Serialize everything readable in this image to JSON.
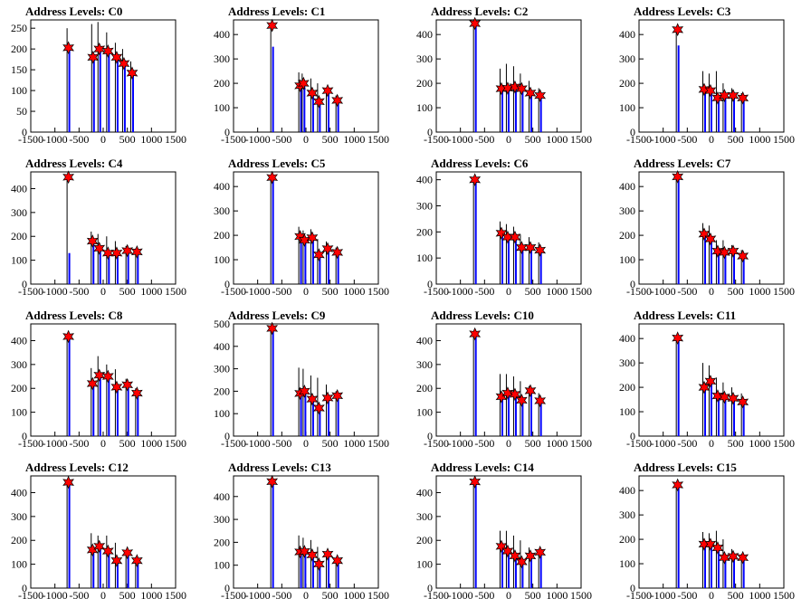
{
  "colors": {
    "black_spikes": "#000000",
    "blue_spikes": "#0000ff",
    "markers": "#ff0000",
    "marker_edge": "#000000"
  },
  "xticks": [
    -1500,
    -1000,
    -500,
    0,
    500,
    1000,
    1500
  ],
  "chart_data": [
    {
      "type": "bar",
      "title": "Address Levels: C0",
      "xlim": [
        -1500,
        1500
      ],
      "ylim": [
        0,
        270
      ],
      "yticks": [
        0,
        50,
        100,
        150,
        200,
        250
      ],
      "x": [
        -720,
        -210,
        -80,
        100,
        280,
        430,
        600,
        720
      ],
      "values": [
        203,
        180,
        200,
        195,
        180,
        165,
        142,
        null
      ],
      "spikes": [
        {
          "x": -720,
          "black": 250,
          "blue": 200
        },
        {
          "x": -210,
          "black": 260,
          "blue": 180
        },
        {
          "x": -80,
          "black": 265,
          "blue": 200
        },
        {
          "x": 100,
          "black": 240,
          "blue": 190
        },
        {
          "x": 280,
          "black": 215,
          "blue": 180
        },
        {
          "x": 430,
          "black": 200,
          "blue": 165
        },
        {
          "x": 600,
          "black": 170,
          "blue": 140
        }
      ]
    },
    {
      "type": "bar",
      "title": "Address Levels: C1",
      "xlim": [
        -1500,
        1500
      ],
      "ylim": [
        0,
        460
      ],
      "yticks": [
        0,
        100,
        200,
        300,
        400
      ],
      "x": [
        -700,
        -120,
        -50,
        130,
        270,
        450,
        650
      ],
      "values": [
        437,
        190,
        200,
        160,
        125,
        170,
        130
      ],
      "spikes": [
        {
          "x": -700,
          "black": 440,
          "blue": 350
        },
        {
          "x": -120,
          "black": 245,
          "blue": 190
        },
        {
          "x": -50,
          "black": 240,
          "blue": 200
        },
        {
          "x": 130,
          "black": 220,
          "blue": 160
        },
        {
          "x": 270,
          "black": 200,
          "blue": 120
        },
        {
          "x": 450,
          "black": 180,
          "blue": 170
        },
        {
          "x": 650,
          "black": 150,
          "blue": 130
        }
      ]
    },
    {
      "type": "bar",
      "title": "Address Levels: C2",
      "xlim": [
        -1500,
        1500
      ],
      "ylim": [
        0,
        460
      ],
      "yticks": [
        0,
        100,
        200,
        300,
        400
      ],
      "x": [
        -700,
        -150,
        -20,
        130,
        270,
        450,
        650
      ],
      "values": [
        445,
        178,
        180,
        185,
        178,
        160,
        150
      ],
      "spikes": [
        {
          "x": -700,
          "black": 450,
          "blue": 445
        },
        {
          "x": -150,
          "black": 260,
          "blue": 178
        },
        {
          "x": -20,
          "black": 280,
          "blue": 180
        },
        {
          "x": 130,
          "black": 270,
          "blue": 185
        },
        {
          "x": 270,
          "black": 240,
          "blue": 178
        },
        {
          "x": 450,
          "black": 210,
          "blue": 160
        },
        {
          "x": 650,
          "black": 180,
          "blue": 150
        }
      ]
    },
    {
      "type": "bar",
      "title": "Address Levels: C3",
      "xlim": [
        -1500,
        1500
      ],
      "ylim": [
        0,
        460
      ],
      "yticks": [
        0,
        100,
        200,
        300,
        400
      ],
      "x": [
        -700,
        -150,
        -20,
        130,
        270,
        450,
        650
      ],
      "values": [
        420,
        175,
        170,
        140,
        150,
        150,
        140
      ],
      "spikes": [
        {
          "x": -700,
          "black": 425,
          "blue": 355
        },
        {
          "x": -150,
          "black": 250,
          "blue": 175
        },
        {
          "x": -20,
          "black": 240,
          "blue": 170
        },
        {
          "x": 130,
          "black": 250,
          "blue": 140
        },
        {
          "x": 270,
          "black": 200,
          "blue": 150
        },
        {
          "x": 450,
          "black": 180,
          "blue": 150
        },
        {
          "x": 650,
          "black": 160,
          "blue": 140
        }
      ]
    },
    {
      "type": "bar",
      "title": "Address Levels: C4",
      "xlim": [
        -1500,
        1500
      ],
      "ylim": [
        0,
        470
      ],
      "yticks": [
        0,
        100,
        200,
        300,
        400
      ],
      "x": [
        -720,
        -220,
        -80,
        100,
        280,
        500,
        700
      ],
      "values": [
        448,
        180,
        150,
        130,
        130,
        140,
        135
      ],
      "spikes": [
        {
          "x": -720,
          "black": 450,
          "blue": 130
        },
        {
          "x": -220,
          "black": 220,
          "blue": 180
        },
        {
          "x": -80,
          "black": 210,
          "blue": 150
        },
        {
          "x": 100,
          "black": 200,
          "blue": 130
        },
        {
          "x": 280,
          "black": 180,
          "blue": 130
        },
        {
          "x": 500,
          "black": 160,
          "blue": 140
        },
        {
          "x": 700,
          "black": 150,
          "blue": 135
        }
      ]
    },
    {
      "type": "bar",
      "title": "Address Levels: C5",
      "xlim": [
        -1500,
        1500
      ],
      "ylim": [
        0,
        460
      ],
      "yticks": [
        0,
        100,
        200,
        300,
        400
      ],
      "x": [
        -700,
        -120,
        -30,
        130,
        270,
        450,
        650
      ],
      "values": [
        437,
        195,
        180,
        190,
        120,
        145,
        130
      ],
      "spikes": [
        {
          "x": -700,
          "black": 440,
          "blue": 440
        },
        {
          "x": -120,
          "black": 235,
          "blue": 195
        },
        {
          "x": -30,
          "black": 220,
          "blue": 180
        },
        {
          "x": 130,
          "black": 225,
          "blue": 190
        },
        {
          "x": 270,
          "black": 185,
          "blue": 120
        },
        {
          "x": 450,
          "black": 175,
          "blue": 145
        },
        {
          "x": 650,
          "black": 150,
          "blue": 130
        }
      ]
    },
    {
      "type": "bar",
      "title": "Address Levels: C6",
      "xlim": [
        -1500,
        1500
      ],
      "ylim": [
        0,
        430
      ],
      "yticks": [
        0,
        100,
        200,
        300,
        400
      ],
      "x": [
        -700,
        -150,
        -20,
        130,
        270,
        450,
        650
      ],
      "values": [
        400,
        195,
        180,
        180,
        140,
        140,
        130
      ],
      "spikes": [
        {
          "x": -700,
          "black": 400,
          "blue": 400
        },
        {
          "x": -150,
          "black": 240,
          "blue": 195
        },
        {
          "x": -20,
          "black": 230,
          "blue": 180
        },
        {
          "x": 130,
          "black": 220,
          "blue": 180
        },
        {
          "x": 270,
          "black": 190,
          "blue": 140
        },
        {
          "x": 450,
          "black": 180,
          "blue": 140
        },
        {
          "x": 650,
          "black": 160,
          "blue": 130
        }
      ]
    },
    {
      "type": "bar",
      "title": "Address Levels: C7",
      "xlim": [
        -1500,
        1500
      ],
      "ylim": [
        0,
        460
      ],
      "yticks": [
        0,
        100,
        200,
        300,
        400
      ],
      "x": [
        -700,
        -150,
        -20,
        130,
        270,
        450,
        650
      ],
      "values": [
        440,
        205,
        185,
        135,
        130,
        135,
        115
      ],
      "spikes": [
        {
          "x": -700,
          "black": 440,
          "blue": 440
        },
        {
          "x": -150,
          "black": 250,
          "blue": 205
        },
        {
          "x": -20,
          "black": 240,
          "blue": 185
        },
        {
          "x": 130,
          "black": 180,
          "blue": 135
        },
        {
          "x": 270,
          "black": 180,
          "blue": 130
        },
        {
          "x": 450,
          "black": 160,
          "blue": 135
        },
        {
          "x": 650,
          "black": 140,
          "blue": 115
        }
      ]
    },
    {
      "type": "bar",
      "title": "Address Levels: C8",
      "xlim": [
        -1500,
        1500
      ],
      "ylim": [
        0,
        470
      ],
      "yticks": [
        0,
        100,
        200,
        300,
        400
      ],
      "x": [
        -720,
        -220,
        -80,
        100,
        280,
        500,
        700
      ],
      "values": [
        417,
        220,
        255,
        250,
        205,
        215,
        180
      ],
      "spikes": [
        {
          "x": -720,
          "black": 420,
          "blue": 420
        },
        {
          "x": -220,
          "black": 285,
          "blue": 220
        },
        {
          "x": -80,
          "black": 335,
          "blue": 255
        },
        {
          "x": 100,
          "black": 300,
          "blue": 250
        },
        {
          "x": 280,
          "black": 280,
          "blue": 205
        },
        {
          "x": 500,
          "black": 240,
          "blue": 215
        },
        {
          "x": 700,
          "black": 200,
          "blue": 180
        }
      ]
    },
    {
      "type": "bar",
      "title": "Address Levels: C9",
      "xlim": [
        -1500,
        1500
      ],
      "ylim": [
        0,
        500
      ],
      "yticks": [
        0,
        100,
        200,
        300,
        400,
        500
      ],
      "x": [
        -700,
        -120,
        -30,
        130,
        270,
        450,
        650
      ],
      "values": [
        480,
        190,
        200,
        165,
        125,
        170,
        180
      ],
      "spikes": [
        {
          "x": -700,
          "black": 480,
          "blue": 480
        },
        {
          "x": -120,
          "black": 305,
          "blue": 190
        },
        {
          "x": -30,
          "black": 300,
          "blue": 200
        },
        {
          "x": 130,
          "black": 270,
          "blue": 165
        },
        {
          "x": 270,
          "black": 260,
          "blue": 125
        },
        {
          "x": 450,
          "black": 230,
          "blue": 170
        },
        {
          "x": 650,
          "black": 200,
          "blue": 180
        }
      ]
    },
    {
      "type": "bar",
      "title": "Address Levels: C10",
      "xlim": [
        -1500,
        1500
      ],
      "ylim": [
        0,
        470
      ],
      "yticks": [
        0,
        100,
        200,
        300,
        400
      ],
      "x": [
        -700,
        -150,
        -20,
        130,
        270,
        450,
        650
      ],
      "values": [
        428,
        165,
        180,
        175,
        150,
        190,
        148
      ],
      "spikes": [
        {
          "x": -700,
          "black": 430,
          "blue": 430
        },
        {
          "x": -150,
          "black": 260,
          "blue": 165
        },
        {
          "x": -20,
          "black": 260,
          "blue": 180
        },
        {
          "x": 130,
          "black": 250,
          "blue": 175
        },
        {
          "x": 270,
          "black": 230,
          "blue": 150
        },
        {
          "x": 450,
          "black": 210,
          "blue": 190
        },
        {
          "x": 650,
          "black": 180,
          "blue": 148
        }
      ]
    },
    {
      "type": "bar",
      "title": "Address Levels: C11",
      "xlim": [
        -1500,
        1500
      ],
      "ylim": [
        0,
        460
      ],
      "yticks": [
        0,
        100,
        200,
        300,
        400
      ],
      "x": [
        -700,
        -150,
        -20,
        130,
        270,
        450,
        650
      ],
      "values": [
        402,
        200,
        225,
        165,
        160,
        155,
        140
      ],
      "spikes": [
        {
          "x": -700,
          "black": 405,
          "blue": 405
        },
        {
          "x": -150,
          "black": 300,
          "blue": 200
        },
        {
          "x": -20,
          "black": 290,
          "blue": 225
        },
        {
          "x": 130,
          "black": 240,
          "blue": 165
        },
        {
          "x": 270,
          "black": 220,
          "blue": 160
        },
        {
          "x": 450,
          "black": 200,
          "blue": 155
        },
        {
          "x": 650,
          "black": 175,
          "blue": 140
        }
      ]
    },
    {
      "type": "bar",
      "title": "Address Levels: C12",
      "xlim": [
        -1500,
        1500
      ],
      "ylim": [
        0,
        470
      ],
      "yticks": [
        0,
        100,
        200,
        300,
        400
      ],
      "x": [
        -720,
        -220,
        -80,
        100,
        280,
        500,
        700
      ],
      "values": [
        443,
        160,
        175,
        155,
        115,
        148,
        115
      ],
      "spikes": [
        {
          "x": -720,
          "black": 445,
          "blue": 445
        },
        {
          "x": -220,
          "black": 230,
          "blue": 160
        },
        {
          "x": -80,
          "black": 220,
          "blue": 175
        },
        {
          "x": 100,
          "black": 220,
          "blue": 155
        },
        {
          "x": 280,
          "black": 190,
          "blue": 115
        },
        {
          "x": 500,
          "black": 160,
          "blue": 148
        },
        {
          "x": 700,
          "black": 130,
          "blue": 115
        }
      ]
    },
    {
      "type": "bar",
      "title": "Address Levels: C13",
      "xlim": [
        -1500,
        1500
      ],
      "ylim": [
        0,
        490
      ],
      "yticks": [
        0,
        100,
        200,
        300,
        400
      ],
      "x": [
        -700,
        -120,
        -30,
        130,
        270,
        450,
        650
      ],
      "values": [
        465,
        158,
        160,
        145,
        105,
        148,
        120
      ],
      "spikes": [
        {
          "x": -700,
          "black": 465,
          "blue": 465
        },
        {
          "x": -120,
          "black": 230,
          "blue": 158
        },
        {
          "x": -30,
          "black": 220,
          "blue": 160
        },
        {
          "x": 130,
          "black": 210,
          "blue": 145
        },
        {
          "x": 270,
          "black": 180,
          "blue": 105
        },
        {
          "x": 450,
          "black": 160,
          "blue": 148
        },
        {
          "x": 650,
          "black": 130,
          "blue": 120
        }
      ]
    },
    {
      "type": "bar",
      "title": "Address Levels: C14",
      "xlim": [
        -1500,
        1500
      ],
      "ylim": [
        0,
        470
      ],
      "yticks": [
        0,
        100,
        200,
        300,
        400
      ],
      "x": [
        -700,
        -150,
        -20,
        130,
        270,
        450,
        650
      ],
      "values": [
        445,
        175,
        155,
        135,
        110,
        135,
        150
      ],
      "spikes": [
        {
          "x": -700,
          "black": 445,
          "blue": 445
        },
        {
          "x": -150,
          "black": 240,
          "blue": 175
        },
        {
          "x": -20,
          "black": 240,
          "blue": 155
        },
        {
          "x": 130,
          "black": 220,
          "blue": 135
        },
        {
          "x": 270,
          "black": 200,
          "blue": 110
        },
        {
          "x": 450,
          "black": 170,
          "blue": 135
        },
        {
          "x": 650,
          "black": 160,
          "blue": 150
        }
      ]
    },
    {
      "type": "bar",
      "title": "Address Levels: C15",
      "xlim": [
        -1500,
        1500
      ],
      "ylim": [
        0,
        460
      ],
      "yticks": [
        0,
        100,
        200,
        300,
        400
      ],
      "x": [
        -700,
        -150,
        -20,
        130,
        270,
        450,
        650
      ],
      "values": [
        423,
        180,
        180,
        165,
        125,
        130,
        125
      ],
      "spikes": [
        {
          "x": -700,
          "black": 425,
          "blue": 425
        },
        {
          "x": -150,
          "black": 230,
          "blue": 180
        },
        {
          "x": -20,
          "black": 225,
          "blue": 180
        },
        {
          "x": 130,
          "black": 235,
          "blue": 165
        },
        {
          "x": 270,
          "black": 200,
          "blue": 125
        },
        {
          "x": 450,
          "black": 160,
          "blue": 130
        },
        {
          "x": 650,
          "black": 140,
          "blue": 125
        }
      ]
    }
  ]
}
